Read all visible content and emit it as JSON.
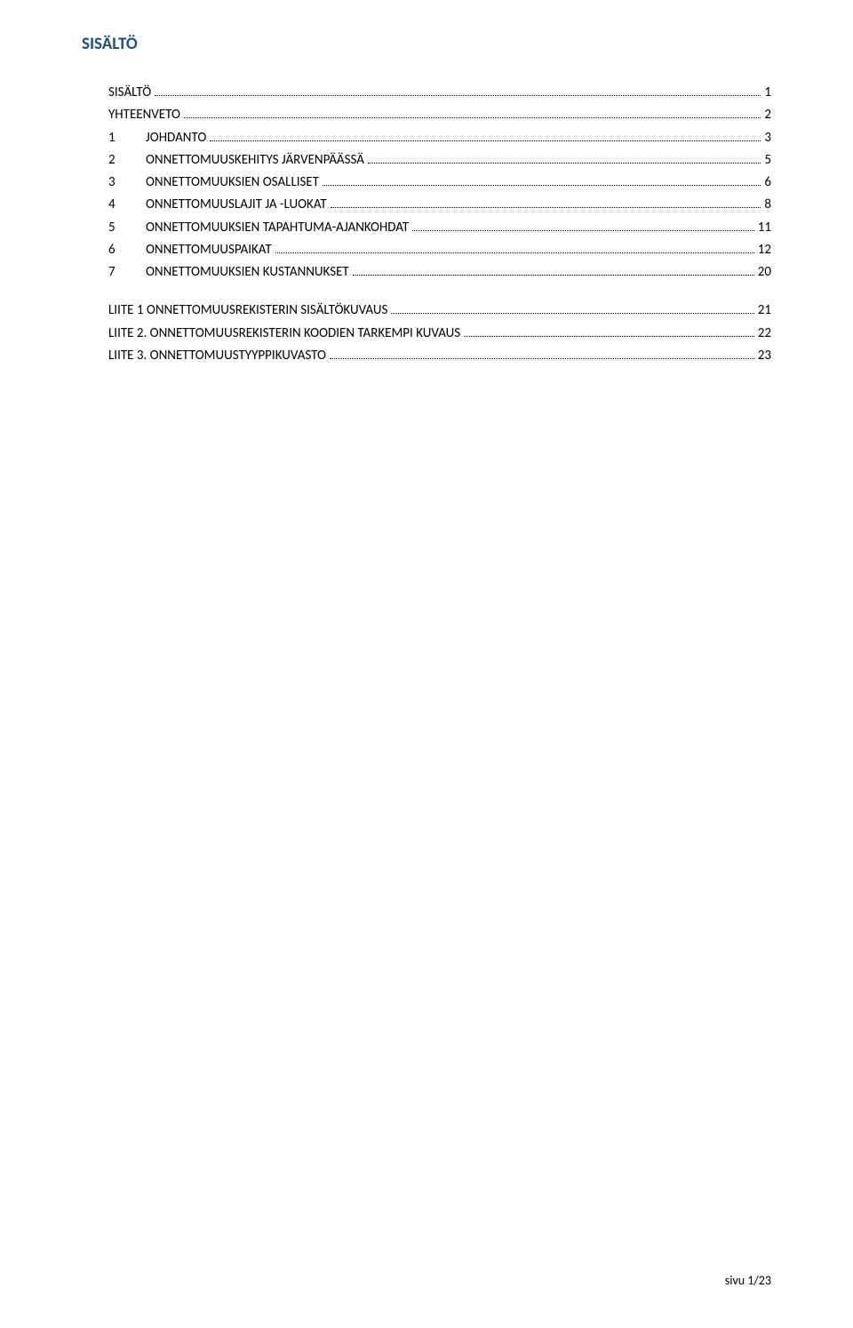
{
  "title": "SISÄLTÖ",
  "title_color": "#1f4e79",
  "text_color": "#000000",
  "background_color": "#ffffff",
  "toc": {
    "entries": [
      {
        "num": "",
        "label": "SISÄLTÖ",
        "page": "1"
      },
      {
        "num": "",
        "label": "YHTEENVETO",
        "page": "2"
      },
      {
        "num": "1",
        "label": "JOHDANTO",
        "page": "3"
      },
      {
        "num": "2",
        "label": "ONNETTOMUUSKEHITYS JÄRVENPÄÄSSÄ",
        "page": "5"
      },
      {
        "num": "3",
        "label": "ONNETTOMUUKSIEN OSALLISET",
        "page": "6"
      },
      {
        "num": "4",
        "label": "ONNETTOMUUSLAJIT JA -LUOKAT",
        "page": "8"
      },
      {
        "num": "5",
        "label": "ONNETTOMUUKSIEN TAPAHTUMA-AJANKOHDAT",
        "page": "11"
      },
      {
        "num": "6",
        "label": "ONNETTOMUUSPAIKAT",
        "page": "12"
      },
      {
        "num": "7",
        "label": "ONNETTOMUUKSIEN KUSTANNUKSET",
        "page": "20"
      }
    ],
    "appendix": [
      {
        "num": "",
        "label": "LIITE 1 ONNETTOMUUSREKISTERIN SISÄLTÖKUVAUS",
        "page": "21"
      },
      {
        "num": "",
        "label": "LIITE 2. ONNETTOMUUSREKISTERIN KOODIEN TARKEMPI KUVAUS",
        "page": "22"
      },
      {
        "num": "",
        "label": "LIITE 3. ONNETTOMUUSTYYPPIKUVASTO",
        "page": "23"
      }
    ]
  },
  "footer": "sivu 1/23"
}
